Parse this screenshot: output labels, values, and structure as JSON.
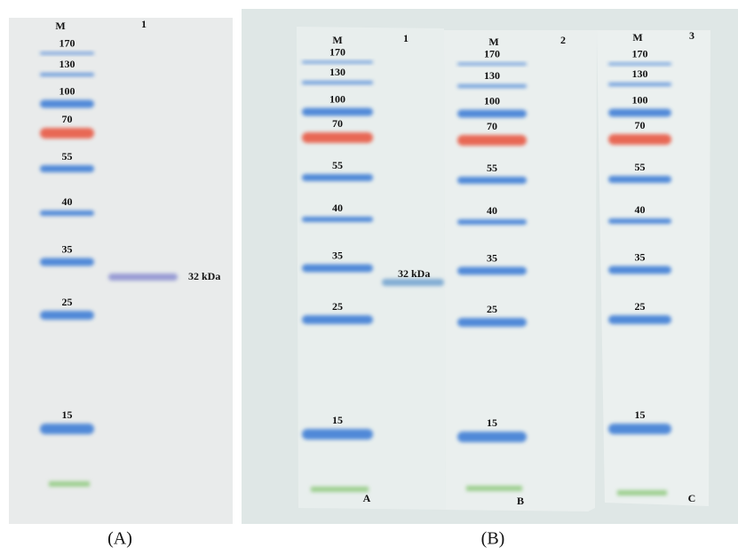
{
  "panel_a": {
    "marker_header": "M",
    "lane_header": "1",
    "markers": [
      "170",
      "130",
      "100",
      "70",
      "55",
      "40",
      "35",
      "25",
      "15"
    ],
    "band_label": "32 kDa",
    "caption": "(A)"
  },
  "panel_b": {
    "strips": [
      {
        "marker_header": "M",
        "lane_header": "1",
        "markers": [
          "170",
          "130",
          "100",
          "70",
          "55",
          "40",
          "35",
          "25",
          "15"
        ],
        "band_label": "32 kDa",
        "letter": "A"
      },
      {
        "marker_header": "M",
        "lane_header": "2",
        "markers": [
          "170",
          "130",
          "100",
          "70",
          "55",
          "40",
          "35",
          "25",
          "15"
        ],
        "letter": "B"
      },
      {
        "marker_header": "M",
        "lane_header": "3",
        "markers": [
          "170",
          "130",
          "100",
          "70",
          "55",
          "40",
          "35",
          "25",
          "15"
        ],
        "letter": "C"
      }
    ],
    "caption": "(B)"
  }
}
